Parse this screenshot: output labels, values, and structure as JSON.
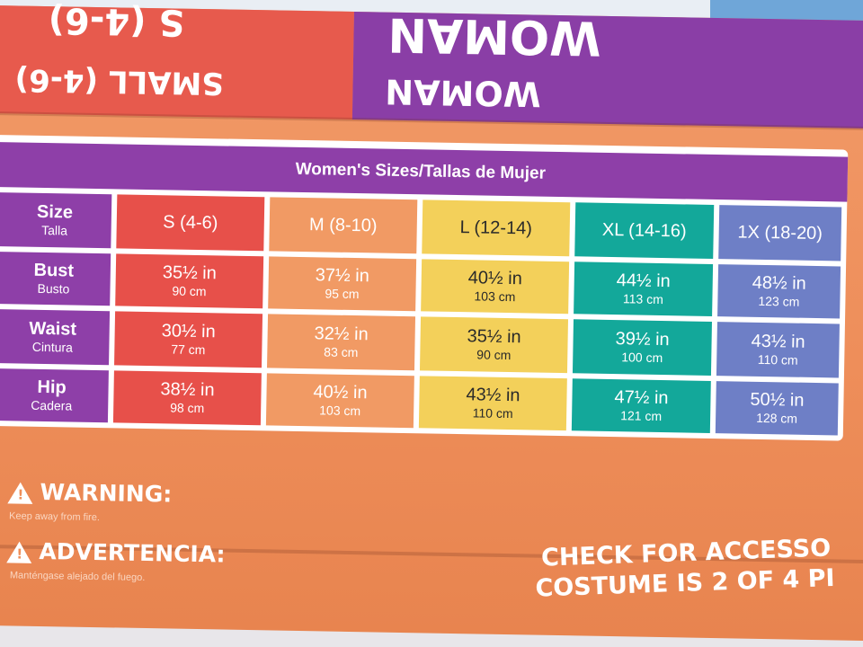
{
  "flaps": {
    "red_upside_top": "S (4-6)",
    "red_upside_bottom": "SMALL (4-6)",
    "purple_upside_top": "WOMAN",
    "purple_upside_bottom": "WOMAN"
  },
  "table": {
    "title": "Women's Sizes/Tallas de Mujer",
    "columns": [
      "S (4-6)",
      "M (8-10)",
      "L (12-14)",
      "XL (14-16)",
      "1X (18-20)"
    ],
    "header_label": {
      "en": "Size",
      "es": "Talla"
    },
    "rows": [
      {
        "en": "Bust",
        "es": "Busto",
        "values": [
          {
            "in": "35½ in",
            "cm": "90 cm"
          },
          {
            "in": "37½ in",
            "cm": "95 cm"
          },
          {
            "in": "40½ in",
            "cm": "103 cm"
          },
          {
            "in": "44½ in",
            "cm": "113 cm"
          },
          {
            "in": "48½ in",
            "cm": "123 cm"
          }
        ]
      },
      {
        "en": "Waist",
        "es": "Cintura",
        "values": [
          {
            "in": "30½ in",
            "cm": "77 cm"
          },
          {
            "in": "32½ in",
            "cm": "83 cm"
          },
          {
            "in": "35½ in",
            "cm": "90 cm"
          },
          {
            "in": "39½ in",
            "cm": "100 cm"
          },
          {
            "in": "43½ in",
            "cm": "110 cm"
          }
        ]
      },
      {
        "en": "Hip",
        "es": "Cadera",
        "values": [
          {
            "in": "38½ in",
            "cm": "98 cm"
          },
          {
            "in": "40½ in",
            "cm": "103 cm"
          },
          {
            "in": "43½ in",
            "cm": "110 cm"
          },
          {
            "in": "47½ in",
            "cm": "121 cm"
          },
          {
            "in": "50½ in",
            "cm": "128 cm"
          }
        ]
      }
    ]
  },
  "warnings": {
    "warning_label": "WARNING:",
    "warning_text": "Keep away from fire.",
    "advertencia_label": "ADVERTENCIA:",
    "advertencia_text": "Manténgase alejado del fuego."
  },
  "check": {
    "line1": "CHECK FOR ACCESSO",
    "line2": "COSTUME IS 2 OF 4 PI"
  },
  "colors": {
    "box_orange": "#ee8e5a",
    "purple": "#8e3fa8",
    "red": "#e7504a",
    "peach": "#f19a64",
    "yellow": "#f3d05a",
    "teal": "#13a89a",
    "periwinkle": "#6e7fc6"
  }
}
